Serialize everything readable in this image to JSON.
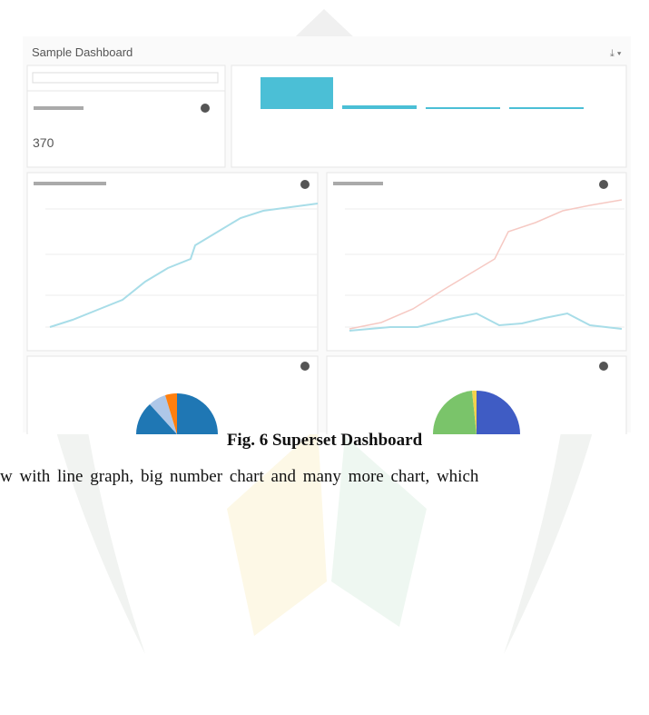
{
  "figure": {
    "dashboard_title": "Sample Dashboard",
    "big_number": "370",
    "caption": "Fig. 6 Superset Dashboard"
  },
  "body_text": "w with line graph, big number chart and many more chart, which"
}
